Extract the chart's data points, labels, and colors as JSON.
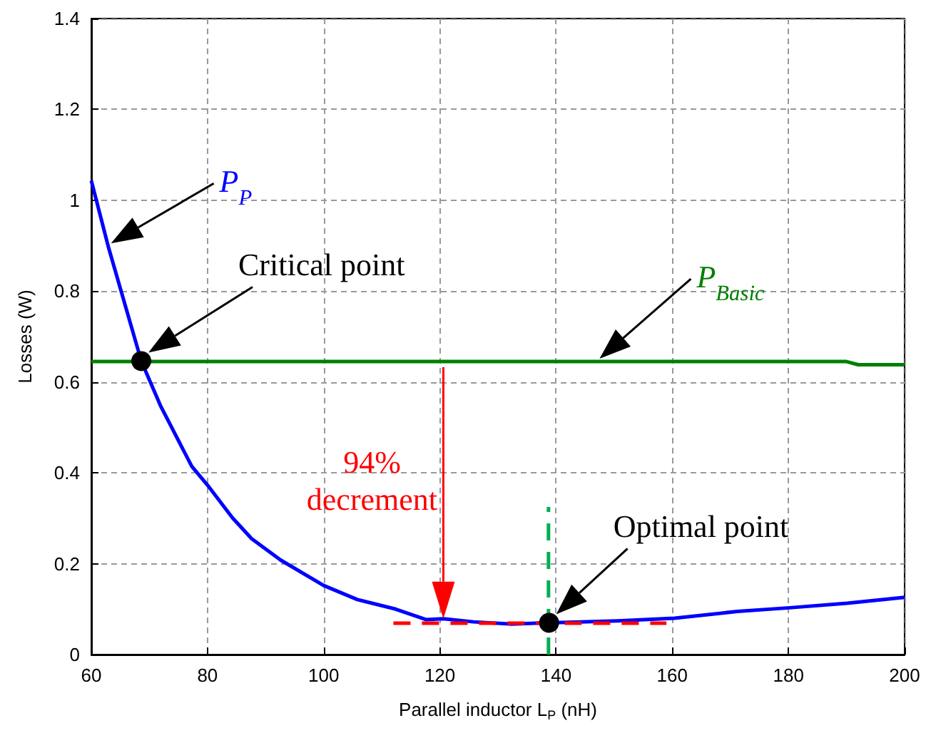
{
  "chart_data": {
    "type": "line",
    "xlabel": "Parallel inductor L$_{P}$ (nH)",
    "ylabel": "Losses (W)",
    "xlim": [
      60,
      200
    ],
    "xticks": [
      60,
      80,
      100,
      120,
      140,
      160,
      180,
      200
    ],
    "ylim": [
      0,
      1.4
    ],
    "yticks": [
      0,
      0.2,
      0.4,
      0.6,
      0.8,
      1,
      1.2,
      1.4
    ],
    "grid": true,
    "marker": "none",
    "series": [
      {
        "name": "P$_{P}$",
        "color": "#0000ff",
        "line_style": "solid",
        "x": [
          60,
          62.9,
          68.6,
          71.9,
          77.3,
          80,
          84.3,
          87.6,
          92.6,
          100,
          105.8,
          112.4,
          117.6,
          120.6,
          125.8,
          132.4,
          138.8,
          150.6,
          160.4,
          171.2,
          180.2,
          190.1,
          200
        ],
        "values": [
          1.043,
          0.899,
          0.646,
          0.548,
          0.414,
          0.373,
          0.301,
          0.255,
          0.208,
          0.152,
          0.121,
          0.1,
          0.077,
          0.079,
          0.072,
          0.067,
          0.07,
          0.074,
          0.08,
          0.095,
          0.103,
          0.113,
          0.126
        ]
      },
      {
        "name": "P$_{Basic}$",
        "color": "#008000",
        "line_style": "solid",
        "x": [
          60,
          100,
          147,
          190,
          192,
          200
        ],
        "values": [
          0.645,
          0.645,
          0.645,
          0.645,
          0.638,
          0.638
        ]
      },
      {
        "color": "#ff0000",
        "line_style": "dashed",
        "x": [
          112,
          159
        ],
        "values": [
          0.069,
          0.069
        ]
      },
      {
        "color": "#00b050",
        "line_style": "dashed",
        "x": [
          138.7,
          138.7
        ],
        "values": [
          0,
          0.325
        ]
      }
    ],
    "annotations": [
      "Critical point",
      "Optimal point",
      "94% decrement"
    ]
  }
}
